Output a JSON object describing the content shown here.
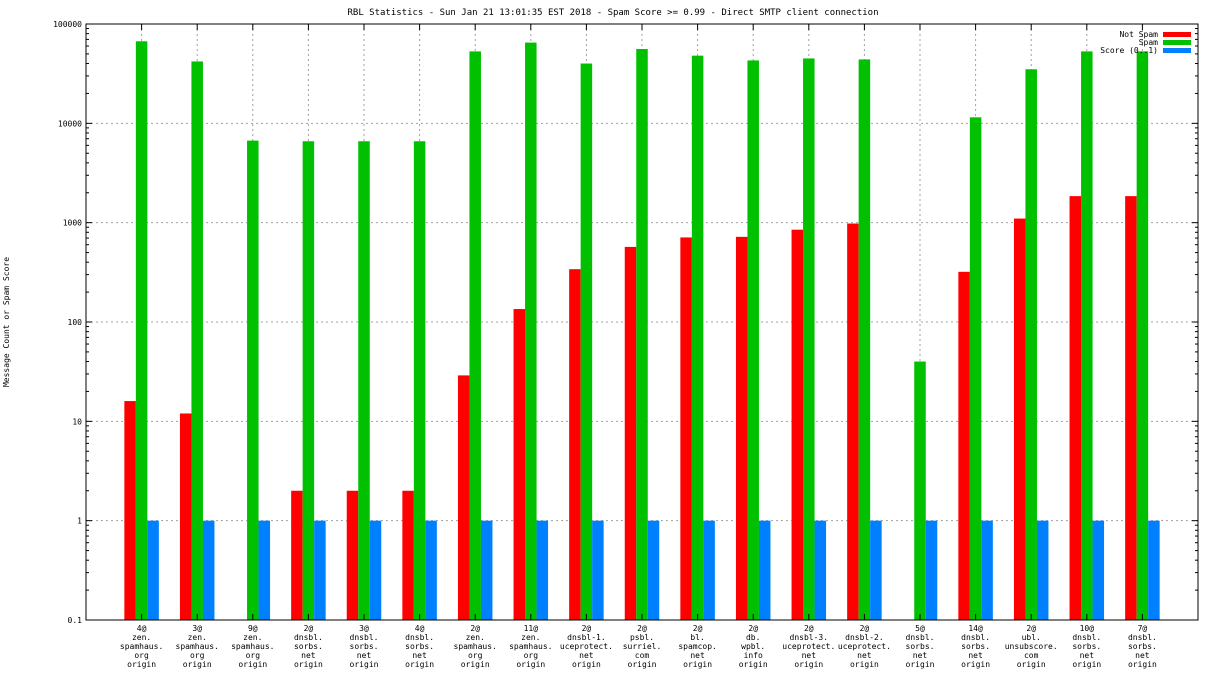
{
  "chart_data": {
    "type": "bar",
    "title": "RBL Statistics - Sun Jan 21 13:01:35 EST 2018 - Spam Score >= 0.99 - Direct SMTP client connection",
    "xlabel": "",
    "ylabel": "Message Count or Spam Score",
    "yscale": "log",
    "ylim": [
      0.1,
      100000
    ],
    "yticks": [
      "0.1",
      "1",
      "10",
      "100",
      "1000",
      "10000",
      "100000"
    ],
    "grid": true,
    "legend_position": "top-right",
    "categories": [
      [
        "4@",
        "zen.",
        "spamhaus.",
        "org",
        "origin"
      ],
      [
        "3@",
        "zen.",
        "spamhaus.",
        "org",
        "origin"
      ],
      [
        "9@",
        "zen.",
        "spamhaus.",
        "org",
        "origin"
      ],
      [
        "2@",
        "dnsbl.",
        "sorbs.",
        "net",
        "origin"
      ],
      [
        "3@",
        "dnsbl.",
        "sorbs.",
        "net",
        "origin"
      ],
      [
        "4@",
        "dnsbl.",
        "sorbs.",
        "net",
        "origin"
      ],
      [
        "2@",
        "zen.",
        "spamhaus.",
        "org",
        "origin"
      ],
      [
        "11@",
        "zen.",
        "spamhaus.",
        "org",
        "origin"
      ],
      [
        "2@",
        "dnsbl-1.",
        "uceprotect.",
        "net",
        "origin"
      ],
      [
        "2@",
        "psbl.",
        "surriel.",
        "com",
        "origin"
      ],
      [
        "2@",
        "bl.",
        "spamcop.",
        "net",
        "origin"
      ],
      [
        "2@",
        "db.",
        "wpbl.",
        "info",
        "origin"
      ],
      [
        "2@",
        "dnsbl-3.",
        "uceprotect.",
        "net",
        "origin"
      ],
      [
        "2@",
        "dnsbl-2.",
        "uceprotect.",
        "net",
        "origin"
      ],
      [
        "5@",
        "dnsbl.",
        "sorbs.",
        "net",
        "origin"
      ],
      [
        "14@",
        "dnsbl.",
        "sorbs.",
        "net",
        "origin"
      ],
      [
        "2@",
        "ubl.",
        "unsubscore.",
        "com",
        "origin"
      ],
      [
        "10@",
        "dnsbl.",
        "sorbs.",
        "net",
        "origin"
      ],
      [
        "7@",
        "dnsbl.",
        "sorbs.",
        "net",
        "origin"
      ]
    ],
    "series": [
      {
        "name": "Not Spam",
        "color": "#ff0000",
        "values": [
          16,
          12,
          null,
          2,
          2,
          2,
          29,
          135,
          340,
          570,
          710,
          720,
          850,
          980,
          null,
          320,
          1100,
          1850,
          1850
        ]
      },
      {
        "name": "Spam",
        "color": "#00c000",
        "values": [
          67000,
          42000,
          6700,
          6600,
          6600,
          6600,
          53000,
          65000,
          40000,
          56000,
          48000,
          43000,
          45000,
          44000,
          40,
          11500,
          35000,
          53000,
          53000
        ]
      },
      {
        "name": "Score (0..1)",
        "color": "#0080ff",
        "values": [
          1,
          1,
          1,
          1,
          1,
          1,
          1,
          1,
          1,
          1,
          1,
          1,
          1,
          1,
          1,
          1,
          1,
          1,
          1
        ]
      }
    ]
  }
}
